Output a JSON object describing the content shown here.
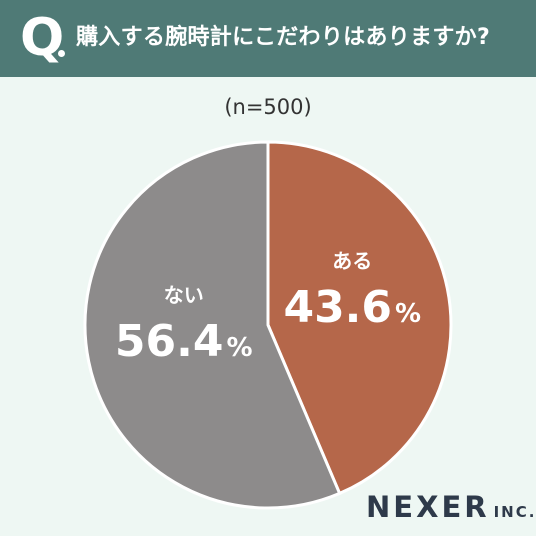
{
  "header": {
    "q_letter": "Q",
    "question": "購入する腕時計にこだわりはありますか?"
  },
  "sample_size": "(n=500)",
  "brand": {
    "name": "NEXER",
    "suffix": "INC."
  },
  "colors": {
    "header_bg": "#4f7a76",
    "background": "#eef7f3",
    "yes": "#b5674a",
    "no": "#8d8b8b"
  },
  "chart_data": {
    "type": "pie",
    "slices": [
      {
        "label": "ある",
        "value": 43.6,
        "value_text": "43.6",
        "unit": "%",
        "color": "#b5674a"
      },
      {
        "label": "ない",
        "value": 56.4,
        "value_text": "56.4",
        "unit": "%",
        "color": "#8d8b8b"
      }
    ]
  }
}
